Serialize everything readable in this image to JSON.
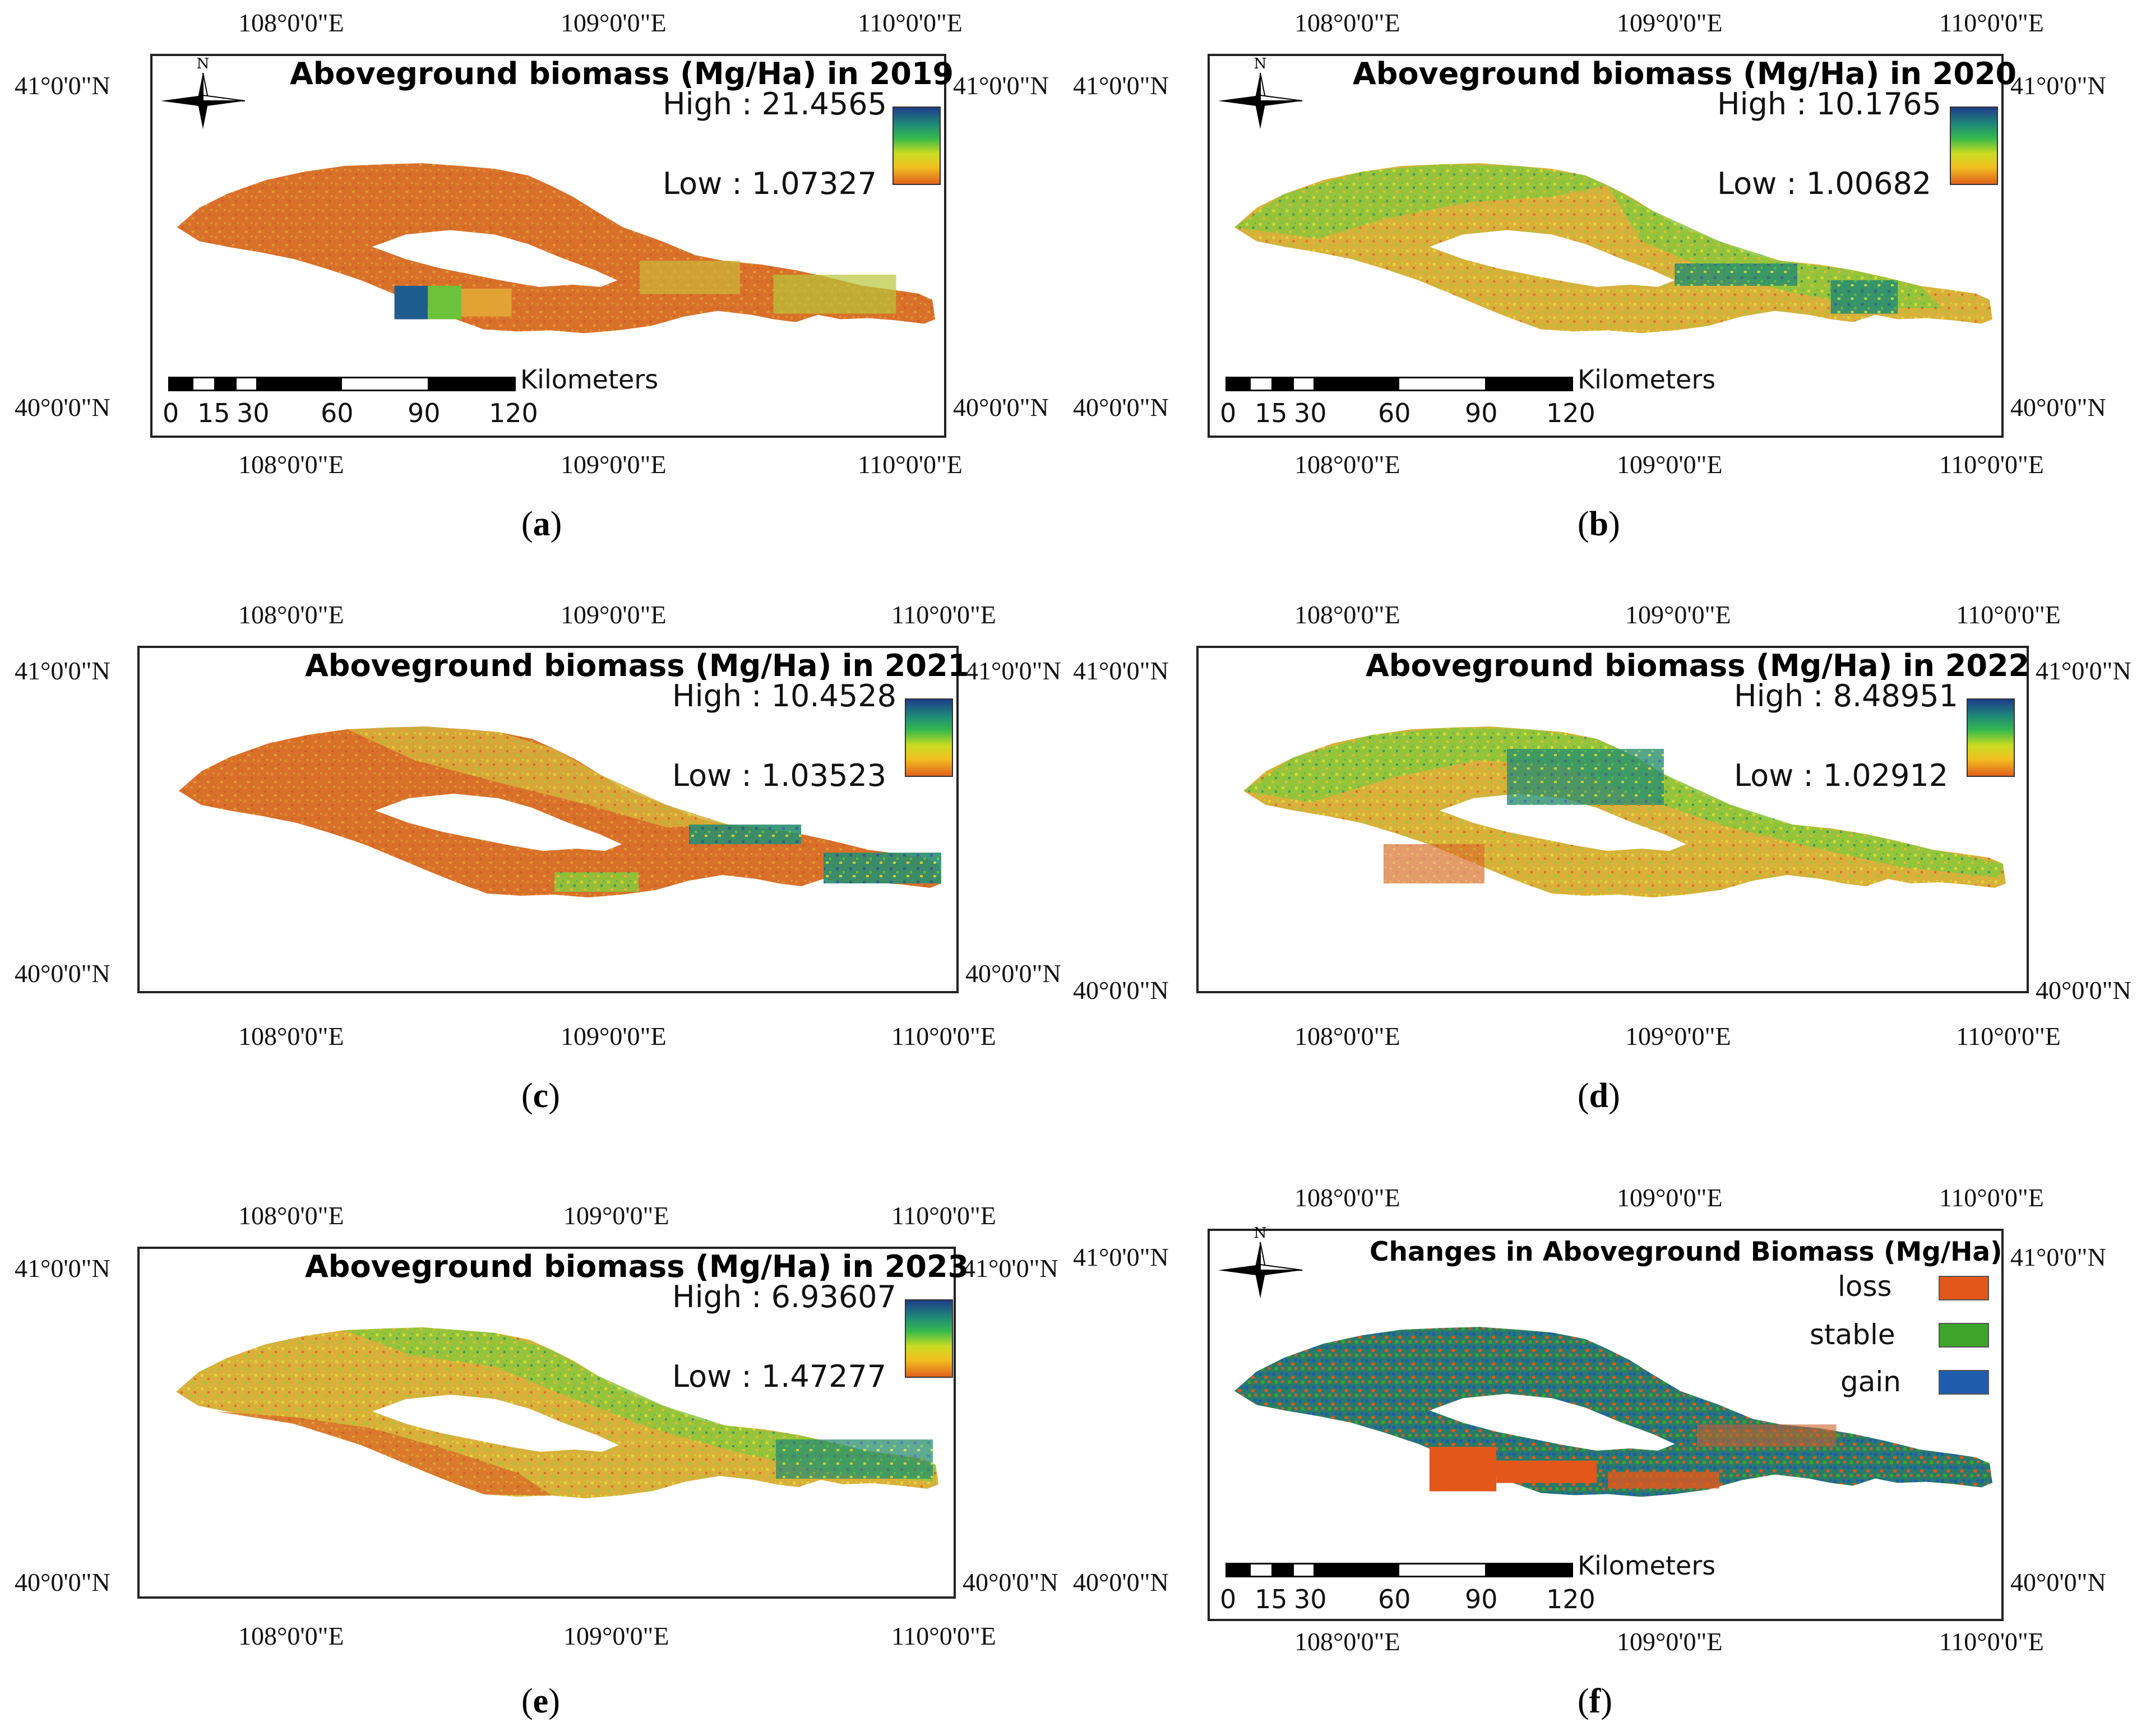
{
  "axes": {
    "lon": [
      "108°0'0\"E",
      "109°0'0\"E",
      "110°0'0\"E"
    ],
    "lat": [
      "41°0'0\"N",
      "40°0'0\"N"
    ]
  },
  "scalebar": {
    "ticks": [
      "0",
      "15",
      "30",
      "60",
      "90",
      "120"
    ],
    "unit": "Kilometers"
  },
  "north_label": "N",
  "panels": [
    {
      "label": "a",
      "title": "Aboveground biomass (Mg/Ha) in 2019",
      "high": "High : 21.4565",
      "low": "Low : 1.07327"
    },
    {
      "label": "b",
      "title": "Aboveground biomass (Mg/Ha) in 2020",
      "high": "High : 10.1765",
      "low": "Low : 1.00682"
    },
    {
      "label": "c",
      "title": "Aboveground biomass (Mg/Ha) in 2021",
      "high": "High : 10.4528",
      "low": "Low : 1.03523"
    },
    {
      "label": "d",
      "title": "Aboveground biomass (Mg/Ha) in 2022",
      "high": "High : 8.48951",
      "low": "Low : 1.02912"
    },
    {
      "label": "e",
      "title": "Aboveground biomass (Mg/Ha) in 2023",
      "high": "High : 6.93607",
      "low": "Low : 1.47277"
    },
    {
      "label": "f",
      "title": "Changes in Aboveground Biomass (Mg/Ha)",
      "legend": [
        {
          "name": "loss",
          "color": "#e4571a"
        },
        {
          "name": "stable",
          "color": "#3ea52a"
        },
        {
          "name": "gain",
          "color": "#1f5cae"
        }
      ]
    }
  ],
  "colors": {
    "orange": "#d9702a",
    "yellow": "#d8c23a",
    "green": "#6cc23a",
    "teal": "#1f8a70",
    "blue": "#1f5cae",
    "loss": "#e4571a",
    "stable": "#3ea52a"
  }
}
